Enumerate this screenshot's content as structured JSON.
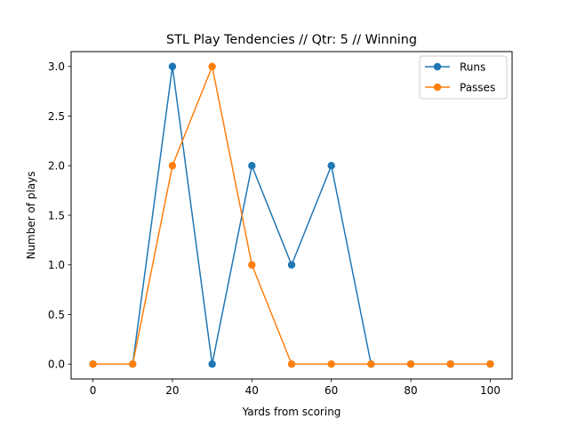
{
  "chart_data": {
    "type": "line",
    "title": "STL Play Tendencies // Qtr: 5 // Winning",
    "xlabel": "Yards from scoring",
    "ylabel": "Number of plays",
    "x": [
      0,
      10,
      20,
      30,
      40,
      50,
      60,
      70,
      80,
      90,
      100
    ],
    "xlim": [
      -5.5,
      105.5
    ],
    "ylim": [
      -0.15,
      3.15
    ],
    "xticks": [
      0,
      20,
      40,
      60,
      80,
      100
    ],
    "yticks": [
      0.0,
      0.5,
      1.0,
      1.5,
      2.0,
      2.5,
      3.0
    ],
    "ytick_labels": [
      "0.0",
      "0.5",
      "1.0",
      "1.5",
      "2.0",
      "2.5",
      "3.0"
    ],
    "grid": false,
    "legend_position": "top-right",
    "series": [
      {
        "name": "Runs",
        "color": "#1f77b4",
        "values": [
          0,
          0,
          3,
          0,
          2,
          1,
          2,
          0,
          0,
          0,
          0
        ]
      },
      {
        "name": "Passes",
        "color": "#ff7f0e",
        "values": [
          0,
          0,
          2,
          3,
          1,
          0,
          0,
          0,
          0,
          0,
          0
        ]
      }
    ]
  }
}
